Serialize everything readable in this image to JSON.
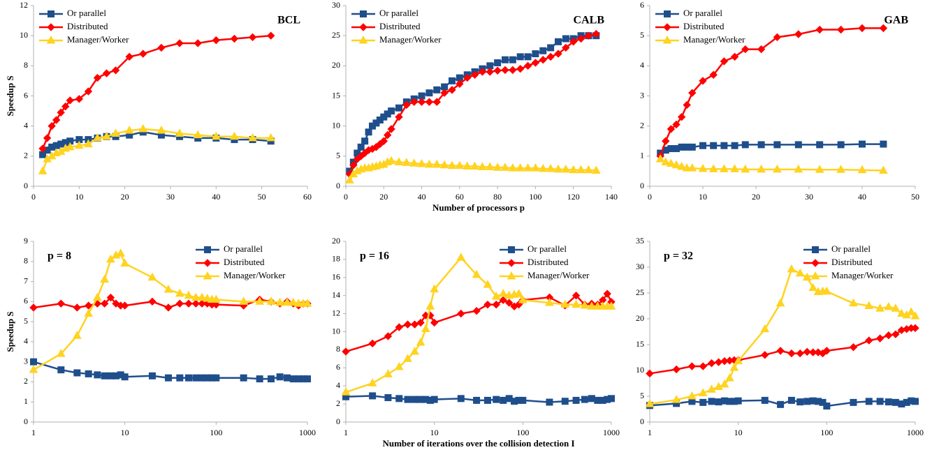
{
  "chart_data": [
    {
      "type": "line",
      "annotation": "BCL",
      "ylabel": "Speedup S",
      "x": [
        2,
        3,
        4,
        5,
        6,
        7,
        8,
        10,
        12,
        14,
        16,
        18,
        21,
        24,
        28,
        32,
        36,
        40,
        44,
        48,
        52
      ],
      "xlim": [
        0,
        60
      ],
      "xticks": [
        0,
        10,
        20,
        30,
        40,
        50,
        60
      ],
      "ylim": [
        0,
        12
      ],
      "yticks": [
        0,
        2,
        4,
        6,
        8,
        10,
        12
      ],
      "legend": "upper left",
      "series": [
        {
          "name": "Or parallel",
          "color": "#1f4e8c",
          "marker": "square",
          "values": [
            2.1,
            2.4,
            2.6,
            2.7,
            2.8,
            2.9,
            3.0,
            3.1,
            3.1,
            3.2,
            3.3,
            3.3,
            3.4,
            3.6,
            3.4,
            3.3,
            3.2,
            3.2,
            3.1,
            3.1,
            3.0
          ]
        },
        {
          "name": "Distributed",
          "color": "#ff0000",
          "marker": "diamond",
          "values": [
            2.5,
            3.2,
            4.0,
            4.4,
            4.9,
            5.3,
            5.7,
            5.8,
            6.3,
            7.2,
            7.5,
            7.7,
            8.6,
            8.8,
            9.2,
            9.5,
            9.5,
            9.7,
            9.8,
            9.9,
            10.0
          ]
        },
        {
          "name": "Manager/Worker",
          "color": "#ffd320",
          "marker": "triangle",
          "values": [
            1.0,
            1.8,
            2.0,
            2.2,
            2.3,
            2.5,
            2.6,
            2.7,
            2.8,
            3.2,
            3.3,
            3.5,
            3.7,
            3.8,
            3.7,
            3.5,
            3.4,
            3.3,
            3.3,
            3.2,
            3.2
          ]
        }
      ]
    },
    {
      "type": "line",
      "annotation": "CALB",
      "xlabel": "Number of processors p",
      "x": [
        2,
        4,
        6,
        8,
        10,
        12,
        14,
        16,
        18,
        20,
        22,
        24,
        28,
        32,
        36,
        40,
        44,
        48,
        52,
        56,
        60,
        64,
        68,
        72,
        76,
        80,
        84,
        88,
        92,
        96,
        100,
        104,
        108,
        112,
        116,
        120,
        124,
        128,
        132
      ],
      "xlim": [
        0,
        140
      ],
      "xticks": [
        0,
        20,
        40,
        60,
        80,
        100,
        120,
        140
      ],
      "ylim": [
        0,
        30
      ],
      "yticks": [
        0,
        5,
        10,
        15,
        20,
        25,
        30
      ],
      "legend": "upper left",
      "series": [
        {
          "name": "Or parallel",
          "color": "#1f4e8c",
          "marker": "square",
          "values": [
            2.5,
            4,
            5.5,
            6.5,
            7.5,
            9,
            10,
            10.5,
            11,
            11.5,
            12,
            12.5,
            13,
            14,
            14.5,
            15,
            15.5,
            16,
            16.5,
            17.5,
            18,
            18.5,
            19,
            19.5,
            20,
            20.5,
            21,
            21,
            21.5,
            21.5,
            22,
            22.5,
            23,
            24,
            24.5,
            24.5,
            25,
            25,
            25
          ]
        },
        {
          "name": "Distributed",
          "color": "#ff0000",
          "marker": "diamond",
          "values": [
            2,
            3.5,
            4.5,
            5,
            5.5,
            6,
            6.2,
            6.5,
            7,
            7.5,
            8.5,
            9.5,
            11.5,
            13.5,
            14,
            14,
            14,
            14,
            15.5,
            16,
            17,
            18,
            18.5,
            19,
            19,
            19.2,
            19.3,
            19.3,
            19.5,
            20,
            20.5,
            21,
            21.5,
            22,
            23,
            24,
            24.5,
            25,
            25.3
          ]
        },
        {
          "name": "Manager/Worker",
          "color": "#ffd320",
          "marker": "triangle",
          "values": [
            1,
            2,
            2.5,
            2.8,
            3,
            3,
            3.2,
            3.3,
            3.5,
            3.6,
            4,
            4.2,
            4,
            3.9,
            3.8,
            3.7,
            3.6,
            3.6,
            3.5,
            3.4,
            3.4,
            3.3,
            3.3,
            3.2,
            3.2,
            3.1,
            3.1,
            3.0,
            3.0,
            3.0,
            3.0,
            2.9,
            2.9,
            2.8,
            2.8,
            2.7,
            2.7,
            2.7,
            2.6
          ]
        }
      ]
    },
    {
      "type": "line",
      "annotation": "GAB",
      "x": [
        2,
        3,
        4,
        5,
        6,
        7,
        8,
        10,
        12,
        14,
        16,
        18,
        21,
        24,
        28,
        32,
        36,
        40,
        44
      ],
      "xlim": [
        0,
        50
      ],
      "xticks": [
        0,
        10,
        20,
        30,
        40,
        50
      ],
      "ylim": [
        0,
        6
      ],
      "yticks": [
        0,
        1,
        2,
        3,
        4,
        5,
        6
      ],
      "legend": "upper left",
      "series": [
        {
          "name": "Or parallel",
          "color": "#1f4e8c",
          "marker": "square",
          "values": [
            1.1,
            1.2,
            1.25,
            1.25,
            1.3,
            1.3,
            1.3,
            1.35,
            1.35,
            1.35,
            1.35,
            1.38,
            1.38,
            1.38,
            1.38,
            1.38,
            1.38,
            1.4,
            1.4
          ]
        },
        {
          "name": "Distributed",
          "color": "#ff0000",
          "marker": "diamond",
          "values": [
            1.0,
            1.5,
            1.9,
            2.05,
            2.3,
            2.7,
            3.1,
            3.5,
            3.7,
            4.15,
            4.3,
            4.55,
            4.55,
            4.95,
            5.05,
            5.2,
            5.2,
            5.25,
            5.25
          ]
        },
        {
          "name": "Manager/Worker",
          "color": "#ffd320",
          "marker": "triangle",
          "values": [
            0.9,
            0.8,
            0.75,
            0.7,
            0.65,
            0.6,
            0.6,
            0.58,
            0.57,
            0.57,
            0.57,
            0.56,
            0.56,
            0.56,
            0.56,
            0.55,
            0.55,
            0.54,
            0.52
          ]
        }
      ]
    },
    {
      "type": "line",
      "annotation": "p = 8",
      "ylabel": "Speedup S",
      "xscale": "log",
      "x": [
        1,
        2,
        3,
        4,
        5,
        6,
        7,
        8,
        9,
        10,
        20,
        30,
        40,
        50,
        60,
        70,
        80,
        90,
        100,
        200,
        300,
        400,
        500,
        600,
        700,
        800,
        900,
        1000
      ],
      "xlim": [
        1,
        1000
      ],
      "xticks": [
        1,
        10,
        100,
        1000
      ],
      "ylim": [
        0,
        9
      ],
      "yticks": [
        0,
        1,
        2,
        3,
        4,
        5,
        6,
        7,
        8,
        9
      ],
      "legend": "upper right",
      "series": [
        {
          "name": "Or parallel",
          "color": "#1f4e8c",
          "marker": "square",
          "values": [
            3.0,
            2.6,
            2.45,
            2.4,
            2.35,
            2.3,
            2.3,
            2.3,
            2.35,
            2.25,
            2.3,
            2.2,
            2.2,
            2.2,
            2.2,
            2.2,
            2.2,
            2.2,
            2.2,
            2.2,
            2.15,
            2.15,
            2.25,
            2.2,
            2.15,
            2.15,
            2.15,
            2.15
          ]
        },
        {
          "name": "Distributed",
          "color": "#ff0000",
          "marker": "diamond",
          "values": [
            5.7,
            5.9,
            5.7,
            5.8,
            5.9,
            5.9,
            6.2,
            5.9,
            5.8,
            5.8,
            6.0,
            5.7,
            5.9,
            5.9,
            5.9,
            5.9,
            5.9,
            5.85,
            5.85,
            5.8,
            6.1,
            6.0,
            5.9,
            6.0,
            5.9,
            5.8,
            5.9,
            5.9
          ]
        },
        {
          "name": "Manager/Worker",
          "color": "#ffd320",
          "marker": "triangle",
          "values": [
            2.6,
            3.4,
            4.3,
            5.4,
            6.2,
            7.1,
            8.1,
            8.3,
            8.4,
            7.9,
            7.2,
            6.6,
            6.4,
            6.3,
            6.2,
            6.2,
            6.15,
            6.1,
            6.1,
            6.0,
            6.0,
            6.0,
            5.95,
            5.95,
            5.95,
            5.9,
            5.9,
            5.9
          ]
        }
      ]
    },
    {
      "type": "line",
      "annotation": "p = 16",
      "xlabel": "Number of iterations over the collision detection I",
      "xscale": "log",
      "x": [
        1,
        2,
        3,
        4,
        5,
        6,
        7,
        8,
        9,
        10,
        20,
        30,
        40,
        50,
        60,
        70,
        80,
        90,
        100,
        200,
        300,
        400,
        500,
        600,
        700,
        800,
        900,
        1000
      ],
      "xlim": [
        1,
        1000
      ],
      "xticks": [
        1,
        10,
        100,
        1000
      ],
      "ylim": [
        0,
        20
      ],
      "yticks": [
        0,
        2,
        4,
        6,
        8,
        10,
        12,
        14,
        16,
        18,
        20
      ],
      "legend": "upper right",
      "series": [
        {
          "name": "Or parallel",
          "color": "#1f4e8c",
          "marker": "square",
          "values": [
            2.8,
            2.9,
            2.7,
            2.6,
            2.5,
            2.5,
            2.5,
            2.5,
            2.4,
            2.5,
            2.6,
            2.4,
            2.4,
            2.5,
            2.4,
            2.6,
            2.3,
            2.4,
            2.4,
            2.2,
            2.3,
            2.4,
            2.5,
            2.6,
            2.4,
            2.4,
            2.5,
            2.6
          ]
        },
        {
          "name": "Distributed",
          "color": "#ff0000",
          "marker": "diamond",
          "values": [
            7.8,
            8.7,
            9.5,
            10.5,
            10.8,
            10.8,
            11,
            11.8,
            11.8,
            11,
            12,
            12.3,
            13,
            13,
            13.5,
            13.2,
            12.8,
            13,
            13.5,
            13.8,
            12.9,
            14,
            13,
            13.1,
            13,
            13.5,
            14.2,
            13.3
          ]
        },
        {
          "name": "Manager/Worker",
          "color": "#ffd320",
          "marker": "triangle",
          "values": [
            3.3,
            4.3,
            5.3,
            6.1,
            7.0,
            7.8,
            8.8,
            10.3,
            12.8,
            14.7,
            18.2,
            16.3,
            15.2,
            13.9,
            14.2,
            14.0,
            14.1,
            14.2,
            13.5,
            13.2,
            13.0,
            13.0,
            12.9,
            12.8,
            12.8,
            12.8,
            12.8,
            12.8
          ]
        }
      ]
    },
    {
      "type": "line",
      "annotation": "p = 32",
      "xscale": "log",
      "x": [
        1,
        2,
        3,
        4,
        5,
        6,
        7,
        8,
        9,
        10,
        20,
        30,
        40,
        50,
        60,
        70,
        80,
        90,
        100,
        200,
        300,
        400,
        500,
        600,
        700,
        800,
        900,
        1000
      ],
      "xlim": [
        1,
        1000
      ],
      "xticks": [
        1,
        10,
        100,
        1000
      ],
      "ylim": [
        0,
        35
      ],
      "yticks": [
        0,
        5,
        10,
        15,
        20,
        25,
        30,
        35
      ],
      "legend": "upper right",
      "series": [
        {
          "name": "Or parallel",
          "color": "#1f4e8c",
          "marker": "square",
          "values": [
            3.2,
            3.6,
            4.0,
            3.8,
            4.0,
            3.9,
            4.1,
            4.0,
            4.0,
            4.1,
            4.2,
            3.4,
            4.2,
            3.9,
            4.0,
            4.1,
            4.0,
            3.8,
            3.1,
            3.8,
            4.0,
            4.0,
            3.9,
            3.8,
            3.5,
            3.8,
            4.1,
            4.0
          ]
        },
        {
          "name": "Distributed",
          "color": "#ff0000",
          "marker": "diamond",
          "values": [
            9.4,
            10.2,
            10.8,
            10.8,
            11.4,
            11.6,
            11.8,
            11.9,
            12,
            12,
            13,
            13.8,
            13.3,
            13.3,
            13.6,
            13.5,
            13.5,
            13.3,
            13.8,
            14.5,
            15.8,
            16.2,
            16.8,
            17,
            17.8,
            18,
            18.2,
            18.2
          ]
        },
        {
          "name": "Manager/Worker",
          "color": "#ffd320",
          "marker": "triangle",
          "values": [
            3.5,
            4.3,
            5.0,
            5.6,
            6.3,
            6.8,
            7.3,
            8.5,
            10.5,
            11.8,
            18,
            23,
            29.6,
            28.8,
            28,
            26,
            25.2,
            25.3,
            25.3,
            23,
            22.5,
            22,
            22.3,
            22,
            21,
            20.7,
            21.3,
            20.5
          ]
        }
      ]
    }
  ]
}
